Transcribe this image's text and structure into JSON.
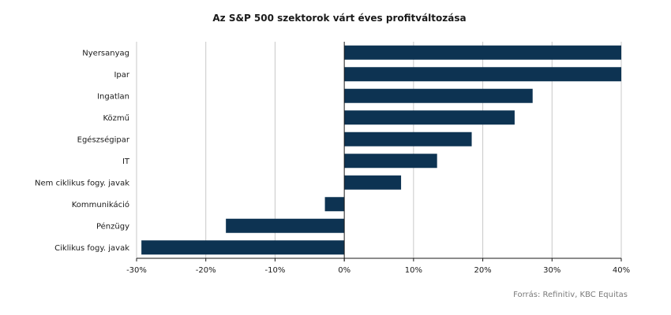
{
  "chart_data": {
    "type": "bar",
    "orientation": "horizontal",
    "title": "Az S&P 500 szektorok várt éves profitváltozása",
    "categories": [
      "Nyersanyag",
      "Ipar",
      "Ingatlan",
      "Közmű",
      "Egészségipar",
      "IT",
      "Nem ciklikus fogy. javak",
      "Kommunikáció",
      "Pénzügy",
      "Ciklikus fogy. javak"
    ],
    "values": [
      40,
      40,
      27.2,
      24.6,
      18.4,
      13.4,
      8.2,
      -2.8,
      -17.1,
      -29.3
    ],
    "xlim": [
      -30,
      40
    ],
    "x_ticks": [
      -30,
      -20,
      -10,
      0,
      10,
      20,
      30,
      40
    ],
    "x_tick_labels": [
      "-30%",
      "-20%",
      "-10%",
      "0%",
      "10%",
      "20%",
      "30%",
      "40%"
    ],
    "xlabel": "",
    "ylabel": "",
    "grid": "vertical",
    "legend": "none",
    "bar_color": "#0d3352",
    "grid_color": "#c8c8c8",
    "axis_color": "#1a1a1a"
  },
  "source": "Forrás: Refinitiv, KBC Equitas"
}
